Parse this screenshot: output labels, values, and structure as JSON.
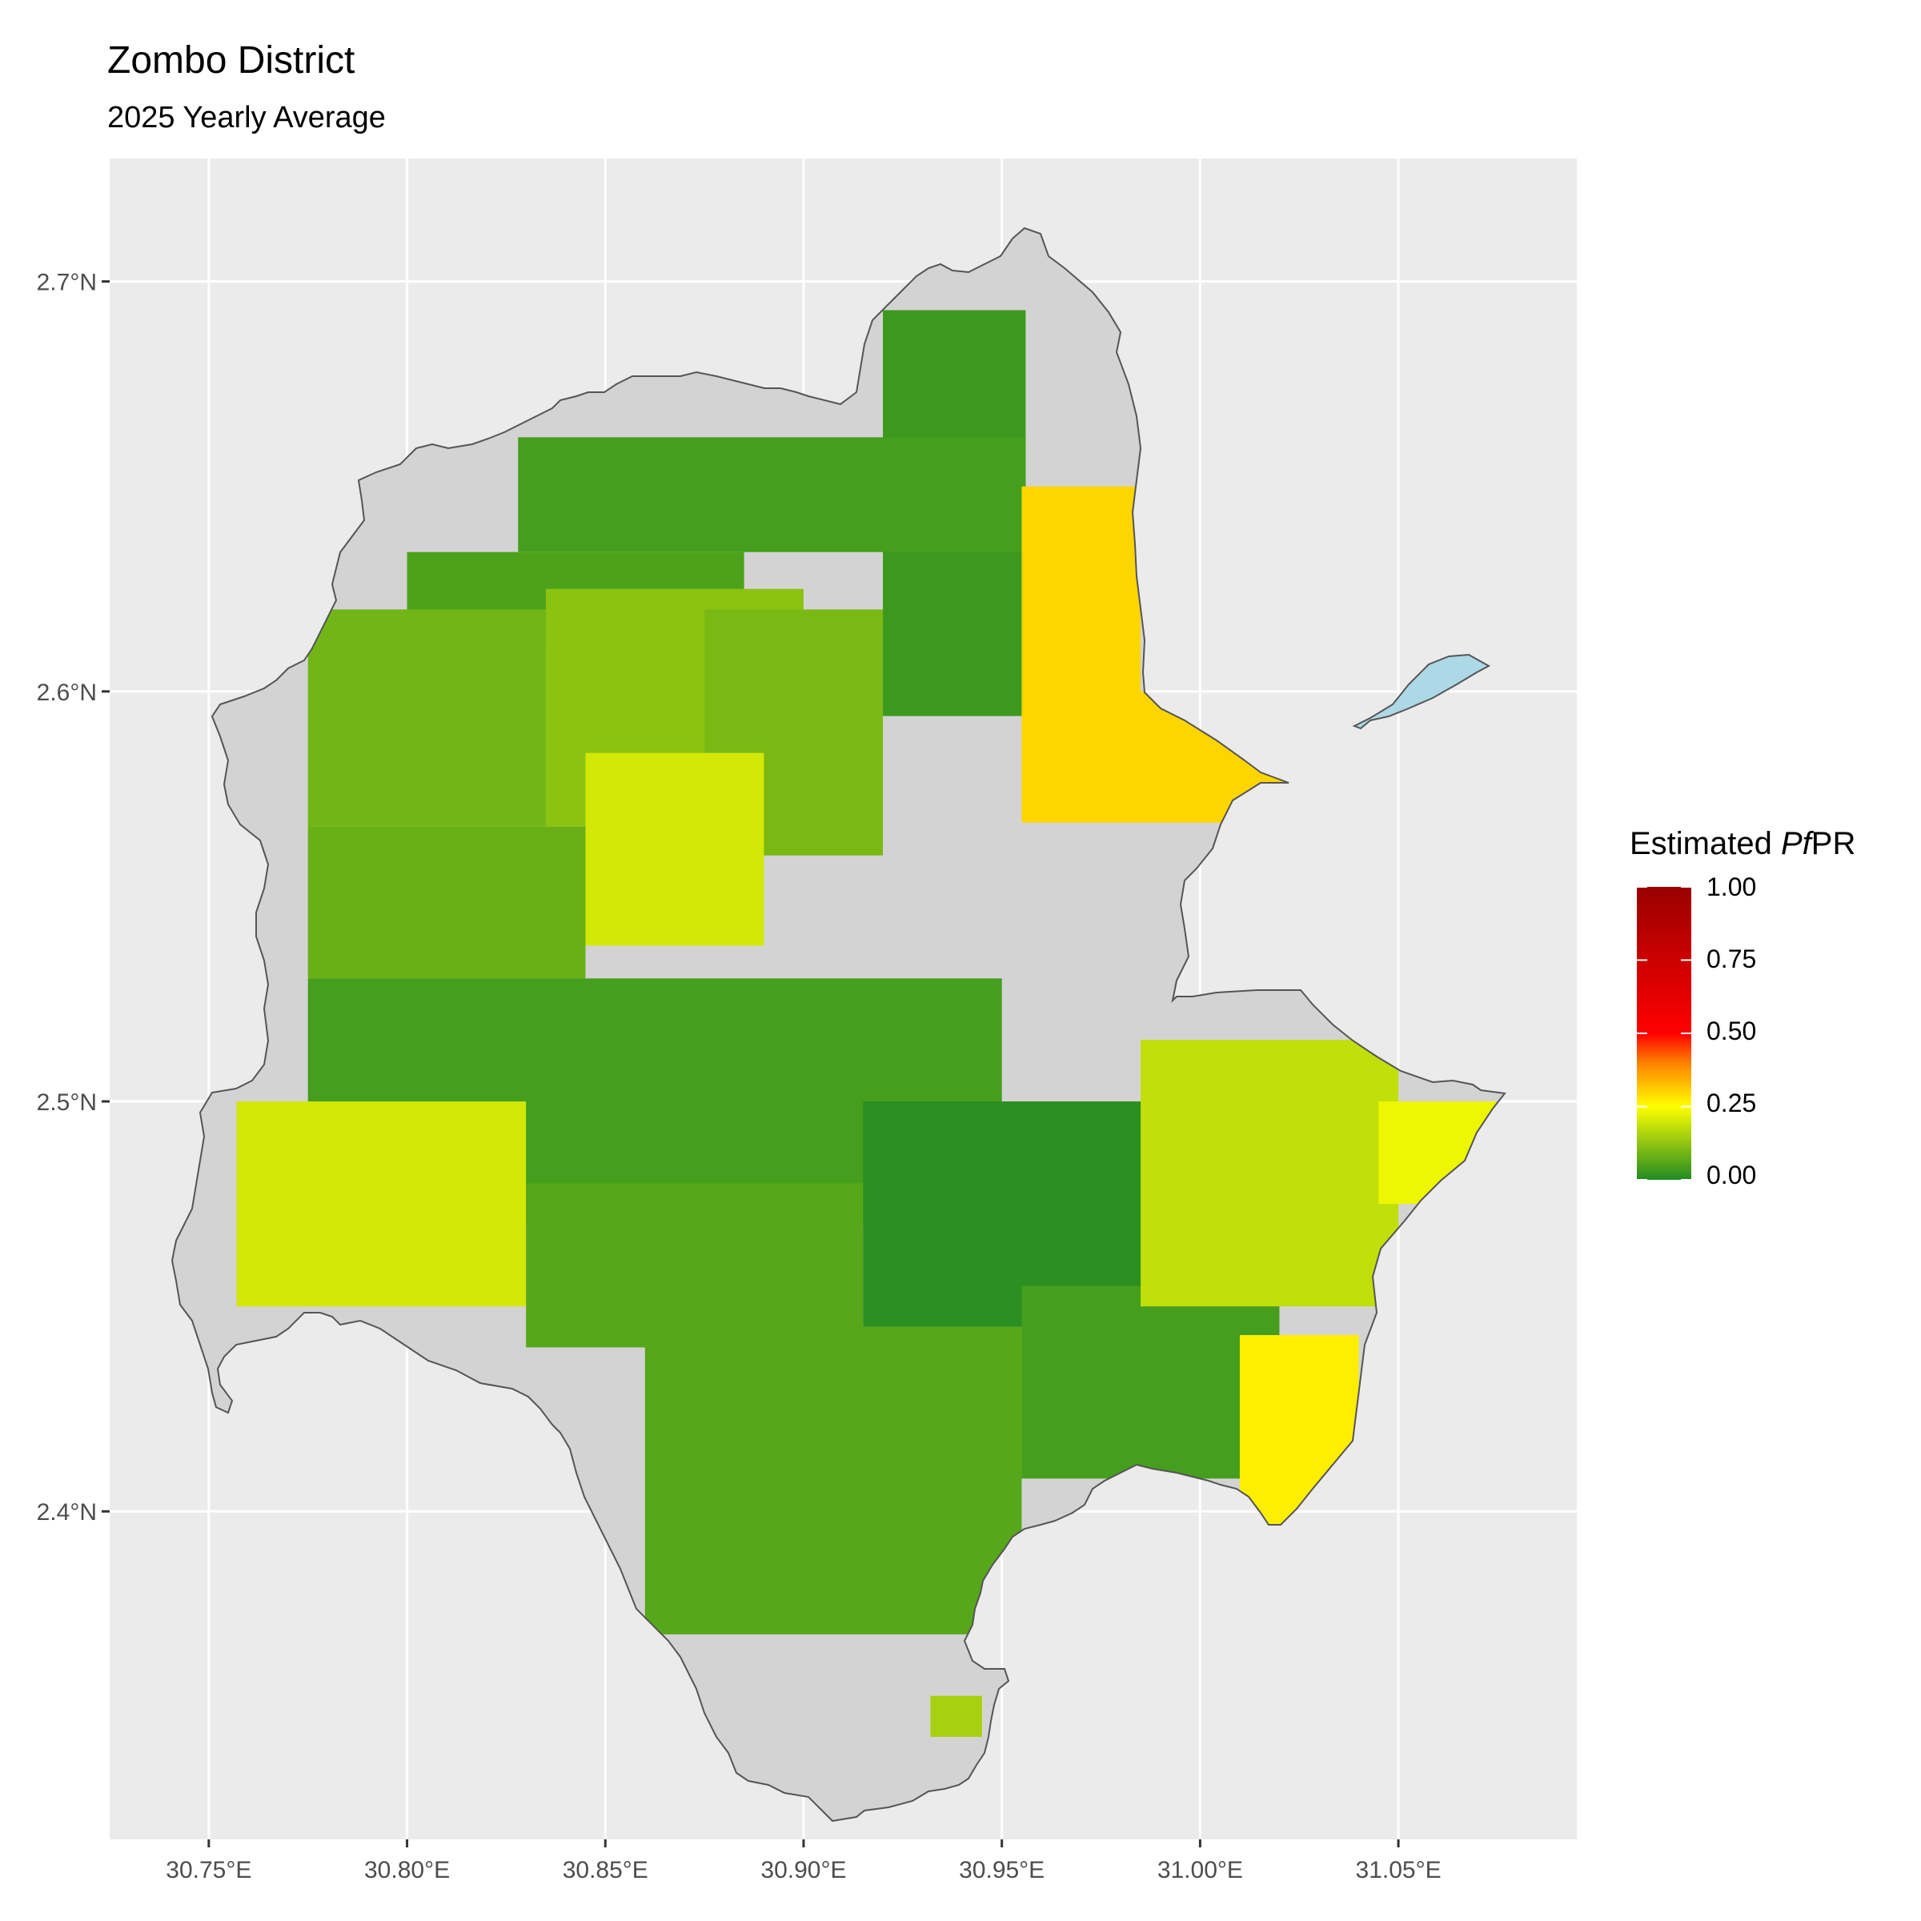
{
  "title": "Zombo District",
  "subtitle": "2025 Yearly Average",
  "legend": {
    "title_prefix": "Estimated ",
    "title_italic": "Pf",
    "title_suffix": "PR",
    "ticks": [
      "1.00",
      "0.75",
      "0.50",
      "0.25",
      "0.00"
    ],
    "colors": [
      "#990000",
      "#ff0000",
      "#ff8000",
      "#ffff00",
      "#228b22"
    ]
  },
  "colors": {
    "panel": "#ebebeb",
    "grid": "#ffffff",
    "district_fill": "#d3d3d3",
    "water": "#add8e6",
    "outline": "#555555"
  },
  "chart_data": {
    "type": "heatmap",
    "map_type": "raster choropleth over district boundary",
    "value": "Estimated PfPR",
    "scale": [
      0,
      1
    ],
    "xlim": [
      30.725,
      31.095
    ],
    "ylim": [
      2.32,
      2.73
    ],
    "x_ticks": [
      30.75,
      30.8,
      30.85,
      30.9,
      30.95,
      31.0,
      31.05
    ],
    "x_tick_labels": [
      "30.75°E",
      "30.80°E",
      "30.85°E",
      "30.90°E",
      "30.95°E",
      "31.00°E",
      "31.05°E"
    ],
    "y_ticks": [
      2.4,
      2.5,
      2.6,
      2.7
    ],
    "y_tick_labels": [
      "2.4°N",
      "2.5°N",
      "2.6°N",
      "2.7°N"
    ],
    "grid": true,
    "legend_position": "right",
    "regions": [
      {
        "lon": [
          30.92,
          30.956
        ],
        "lat": [
          2.594,
          2.693
        ],
        "value": 0.03
      },
      {
        "lon": [
          30.828,
          30.956
        ],
        "lat": [
          2.634,
          2.662
        ],
        "value": 0.04
      },
      {
        "lon": [
          30.8,
          30.885
        ],
        "lat": [
          2.61,
          2.634
        ],
        "value": 0.05
      },
      {
        "lon": [
          30.775,
          30.835
        ],
        "lat": [
          2.567,
          2.62
        ],
        "value": 0.09
      },
      {
        "lon": [
          30.835,
          30.9
        ],
        "lat": [
          2.567,
          2.625
        ],
        "value": 0.12
      },
      {
        "lon": [
          30.875,
          30.92
        ],
        "lat": [
          2.56,
          2.62
        ],
        "value": 0.1
      },
      {
        "lon": [
          30.845,
          30.89
        ],
        "lat": [
          2.538,
          2.585
        ],
        "value": 0.2
      },
      {
        "lon": [
          30.775,
          30.845
        ],
        "lat": [
          2.53,
          2.567
        ],
        "value": 0.08
      },
      {
        "lon": [
          30.775,
          30.95
        ],
        "lat": [
          2.47,
          2.53
        ],
        "value": 0.04
      },
      {
        "lon": [
          30.757,
          30.83
        ],
        "lat": [
          2.45,
          2.5
        ],
        "value": 0.2
      },
      {
        "lon": [
          30.83,
          30.915
        ],
        "lat": [
          2.44,
          2.48
        ],
        "value": 0.06
      },
      {
        "lon": [
          30.915,
          30.99
        ],
        "lat": [
          2.445,
          2.5
        ],
        "value": 0.01
      },
      {
        "lon": [
          30.86,
          30.955
        ],
        "lat": [
          2.37,
          2.445
        ],
        "value": 0.06
      },
      {
        "lon": [
          30.955,
          31.02
        ],
        "lat": [
          2.408,
          2.455
        ],
        "value": 0.04
      },
      {
        "lon": [
          30.955,
          30.985
        ],
        "lat": [
          2.568,
          2.65
        ],
        "value": 0.3
      },
      {
        "lon": [
          30.985,
          31.025
        ],
        "lat": [
          2.568,
          2.6
        ],
        "value": 0.3
      },
      {
        "lon": [
          30.985,
          31.05
        ],
        "lat": [
          2.45,
          2.515
        ],
        "value": 0.18
      },
      {
        "lon": [
          31.01,
          31.04
        ],
        "lat": [
          2.395,
          2.443
        ],
        "value": 0.27
      },
      {
        "lon": [
          31.045,
          31.08
        ],
        "lat": [
          2.475,
          2.5
        ],
        "value": 0.23
      },
      {
        "lon": [
          30.932,
          30.945
        ],
        "lat": [
          2.345,
          2.355
        ],
        "value": 0.15
      }
    ]
  }
}
